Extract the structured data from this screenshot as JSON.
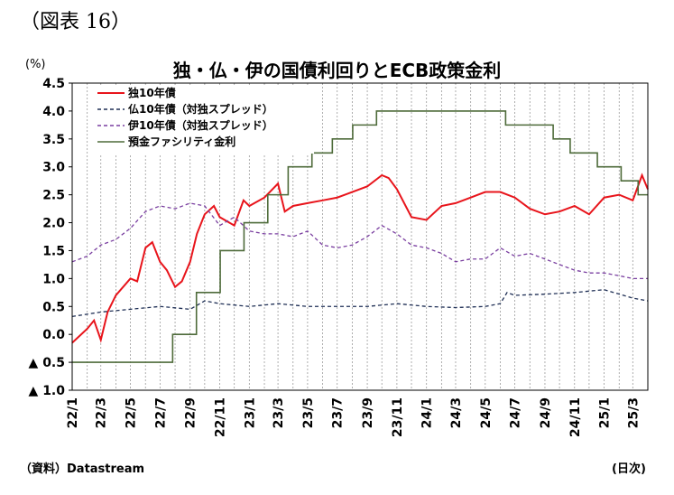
{
  "figure_label": "（図表 16）",
  "source_note": "（資料）Datastream",
  "chart_data": {
    "type": "line",
    "title": "独・仏・伊の国債利回りとECB政策金利",
    "ylabel": "(%)",
    "xlabel": "(日次)",
    "ylim": [
      -1.0,
      4.5
    ],
    "y_ticks": [
      4.5,
      4.0,
      3.5,
      3.0,
      2.5,
      2.0,
      1.5,
      1.0,
      0.5,
      0.0,
      -0.5,
      -1.0
    ],
    "y_tick_labels": [
      "4.5",
      "4.0",
      "3.5",
      "3.0",
      "2.5",
      "2.0",
      "1.5",
      "1.0",
      "0.5",
      "0.0",
      "▲ 0.5",
      "▲ 1.0"
    ],
    "x_range": [
      "2022-01",
      "2025-04"
    ],
    "x_tick_labels": [
      "22/1",
      "22/3",
      "22/5",
      "22/7",
      "22/9",
      "22/11",
      "23/1",
      "23/3",
      "23/5",
      "23/7",
      "23/9",
      "23/11",
      "24/1",
      "24/3",
      "24/5",
      "24/7",
      "24/9",
      "24/11",
      "25/1",
      "25/3"
    ],
    "grid": "vertical dashed",
    "legend_position": "top-left",
    "series": [
      {
        "name": "独10年債",
        "color": "#e8141b",
        "style": "solid",
        "points": [
          [
            "2022-01",
            -0.15
          ],
          [
            "2022-02",
            0.1
          ],
          [
            "2022-02-15",
            0.25
          ],
          [
            "2022-03",
            -0.1
          ],
          [
            "2022-03-15",
            0.4
          ],
          [
            "2022-04",
            0.7
          ],
          [
            "2022-05",
            1.0
          ],
          [
            "2022-05-15",
            0.95
          ],
          [
            "2022-06",
            1.55
          ],
          [
            "2022-06-15",
            1.65
          ],
          [
            "2022-07",
            1.3
          ],
          [
            "2022-07-15",
            1.15
          ],
          [
            "2022-08",
            0.85
          ],
          [
            "2022-08-15",
            0.95
          ],
          [
            "2022-09",
            1.3
          ],
          [
            "2022-09-15",
            1.8
          ],
          [
            "2022-10",
            2.15
          ],
          [
            "2022-10-20",
            2.3
          ],
          [
            "2022-11",
            2.1
          ],
          [
            "2022-12",
            1.95
          ],
          [
            "2022-12-20",
            2.4
          ],
          [
            "2023-01",
            2.3
          ],
          [
            "2023-02",
            2.45
          ],
          [
            "2023-03",
            2.7
          ],
          [
            "2023-03-15",
            2.2
          ],
          [
            "2023-04",
            2.3
          ],
          [
            "2023-05",
            2.35
          ],
          [
            "2023-06",
            2.4
          ],
          [
            "2023-07",
            2.45
          ],
          [
            "2023-08",
            2.55
          ],
          [
            "2023-09",
            2.65
          ],
          [
            "2023-10",
            2.85
          ],
          [
            "2023-10-15",
            2.8
          ],
          [
            "2023-11",
            2.6
          ],
          [
            "2023-12",
            2.1
          ],
          [
            "2024-01",
            2.05
          ],
          [
            "2024-02",
            2.3
          ],
          [
            "2024-03",
            2.35
          ],
          [
            "2024-04",
            2.45
          ],
          [
            "2024-05",
            2.55
          ],
          [
            "2024-06",
            2.55
          ],
          [
            "2024-07",
            2.45
          ],
          [
            "2024-08",
            2.25
          ],
          [
            "2024-09",
            2.15
          ],
          [
            "2024-10",
            2.2
          ],
          [
            "2024-11",
            2.3
          ],
          [
            "2024-12",
            2.15
          ],
          [
            "2025-01",
            2.45
          ],
          [
            "2025-02",
            2.5
          ],
          [
            "2025-03",
            2.4
          ],
          [
            "2025-03-20",
            2.85
          ],
          [
            "2025-04",
            2.6
          ]
        ]
      },
      {
        "name": "仏10年債（対独スプレッド）",
        "color": "#1f2f55",
        "style": "dashed",
        "points": [
          [
            "2022-01",
            0.32
          ],
          [
            "2022-03",
            0.4
          ],
          [
            "2022-05",
            0.45
          ],
          [
            "2022-07",
            0.5
          ],
          [
            "2022-09",
            0.45
          ],
          [
            "2022-10",
            0.6
          ],
          [
            "2022-11",
            0.55
          ],
          [
            "2023-01",
            0.5
          ],
          [
            "2023-03",
            0.55
          ],
          [
            "2023-05",
            0.5
          ],
          [
            "2023-07",
            0.5
          ],
          [
            "2023-09",
            0.5
          ],
          [
            "2023-11",
            0.55
          ],
          [
            "2024-01",
            0.5
          ],
          [
            "2024-03",
            0.48
          ],
          [
            "2024-05",
            0.5
          ],
          [
            "2024-06",
            0.55
          ],
          [
            "2024-06-15",
            0.75
          ],
          [
            "2024-07",
            0.7
          ],
          [
            "2024-09",
            0.72
          ],
          [
            "2024-11",
            0.75
          ],
          [
            "2025-01",
            0.8
          ],
          [
            "2025-03",
            0.65
          ],
          [
            "2025-04",
            0.6
          ]
        ]
      },
      {
        "name": "伊10年債（対独スプレッド）",
        "color": "#7a3fa0",
        "style": "dashed",
        "points": [
          [
            "2022-01",
            1.3
          ],
          [
            "2022-02",
            1.4
          ],
          [
            "2022-03",
            1.6
          ],
          [
            "2022-04",
            1.7
          ],
          [
            "2022-05",
            1.9
          ],
          [
            "2022-06",
            2.2
          ],
          [
            "2022-07",
            2.3
          ],
          [
            "2022-08",
            2.25
          ],
          [
            "2022-09",
            2.35
          ],
          [
            "2022-10",
            2.3
          ],
          [
            "2022-11",
            1.95
          ],
          [
            "2022-12",
            2.1
          ],
          [
            "2023-01",
            1.85
          ],
          [
            "2023-02",
            1.8
          ],
          [
            "2023-03",
            1.8
          ],
          [
            "2023-04",
            1.75
          ],
          [
            "2023-05",
            1.85
          ],
          [
            "2023-06",
            1.6
          ],
          [
            "2023-07",
            1.55
          ],
          [
            "2023-08",
            1.6
          ],
          [
            "2023-09",
            1.75
          ],
          [
            "2023-10",
            1.95
          ],
          [
            "2023-11",
            1.8
          ],
          [
            "2023-12",
            1.6
          ],
          [
            "2024-01",
            1.55
          ],
          [
            "2024-02",
            1.45
          ],
          [
            "2024-03",
            1.3
          ],
          [
            "2024-04",
            1.35
          ],
          [
            "2024-05",
            1.35
          ],
          [
            "2024-06",
            1.55
          ],
          [
            "2024-07",
            1.4
          ],
          [
            "2024-08",
            1.45
          ],
          [
            "2024-09",
            1.35
          ],
          [
            "2024-10",
            1.25
          ],
          [
            "2024-11",
            1.15
          ],
          [
            "2024-12",
            1.1
          ],
          [
            "2025-01",
            1.1
          ],
          [
            "2025-02",
            1.05
          ],
          [
            "2025-03",
            1.0
          ],
          [
            "2025-04",
            1.0
          ]
        ]
      },
      {
        "name": "預金ファシリティ金利",
        "color": "#4e6b3a",
        "style": "step",
        "points": [
          [
            "2022-01",
            -0.5
          ],
          [
            "2022-07-27",
            0.0
          ],
          [
            "2022-09-14",
            0.75
          ],
          [
            "2022-11-02",
            1.5
          ],
          [
            "2022-12-21",
            2.0
          ],
          [
            "2023-02-08",
            2.5
          ],
          [
            "2023-03-22",
            3.0
          ],
          [
            "2023-05-10",
            3.25
          ],
          [
            "2023-06-21",
            3.5
          ],
          [
            "2023-08-02",
            3.75
          ],
          [
            "2023-09-20",
            4.0
          ],
          [
            "2024-06-12",
            3.75
          ],
          [
            "2024-09-18",
            3.5
          ],
          [
            "2024-10-23",
            3.25
          ],
          [
            "2024-12-18",
            3.0
          ],
          [
            "2025-02-05",
            2.75
          ],
          [
            "2025-03-12",
            2.5
          ],
          [
            "2025-04",
            2.5
          ]
        ]
      }
    ]
  }
}
